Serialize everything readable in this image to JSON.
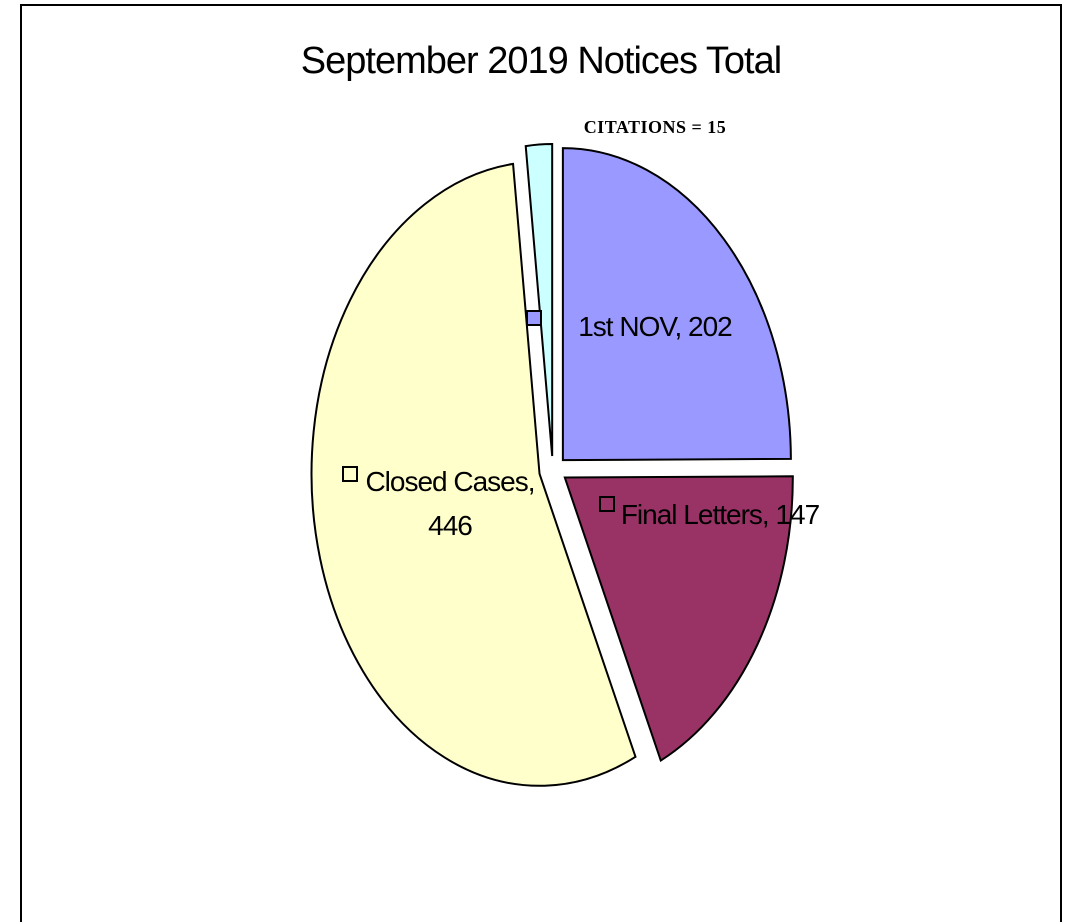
{
  "chart_data": {
    "type": "pie",
    "title": "September  2019 Notices Total",
    "values": [
      202,
      147,
      446,
      15
    ],
    "value_labels": [
      "1st NOV, 202",
      "Final Letters, 147",
      "Closed Cases, 446",
      "CITATIONS = 15"
    ],
    "colors": [
      "#9999ff",
      "#993366",
      "#ffffcc",
      "#ccffff"
    ]
  }
}
